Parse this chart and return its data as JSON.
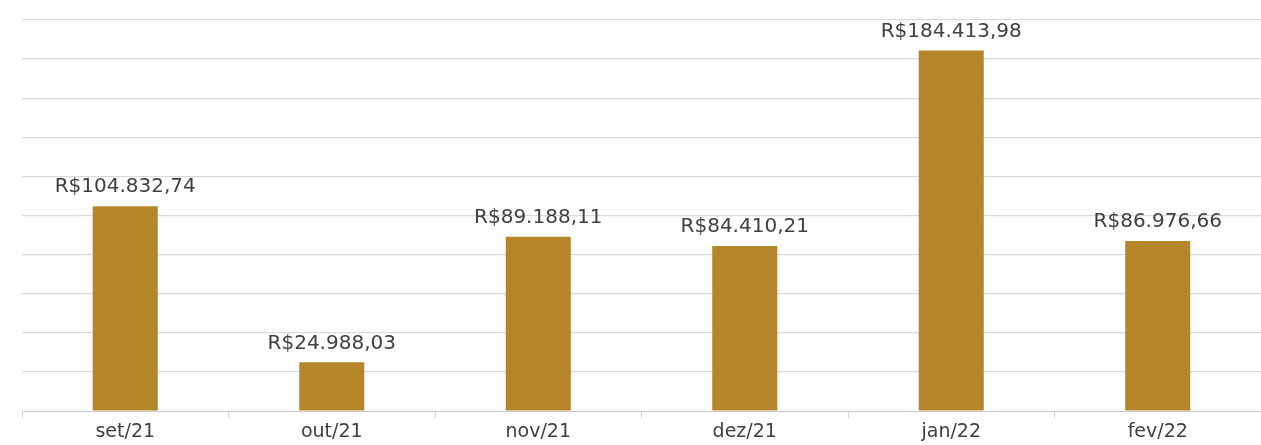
{
  "chart_data": {
    "type": "bar",
    "categories": [
      "set/21",
      "out/21",
      "nov/21",
      "dez/21",
      "jan/22",
      "fev/22"
    ],
    "values": [
      104832.74,
      24988.03,
      89188.11,
      84410.21,
      184413.98,
      86976.66
    ],
    "value_labels": [
      "R$104.832,74",
      "R$24.988,03",
      "R$89.188,11",
      "R$84.410,21",
      "R$184.413,98",
      "R$86.976,66"
    ],
    "color": "#b5862a",
    "ylim": [
      0,
      200000
    ],
    "yticks": [
      0,
      20000,
      40000,
      60000,
      80000,
      100000,
      120000,
      140000,
      160000,
      180000,
      200000
    ],
    "grid": "y",
    "tick_labels": "x",
    "legend": false
  }
}
